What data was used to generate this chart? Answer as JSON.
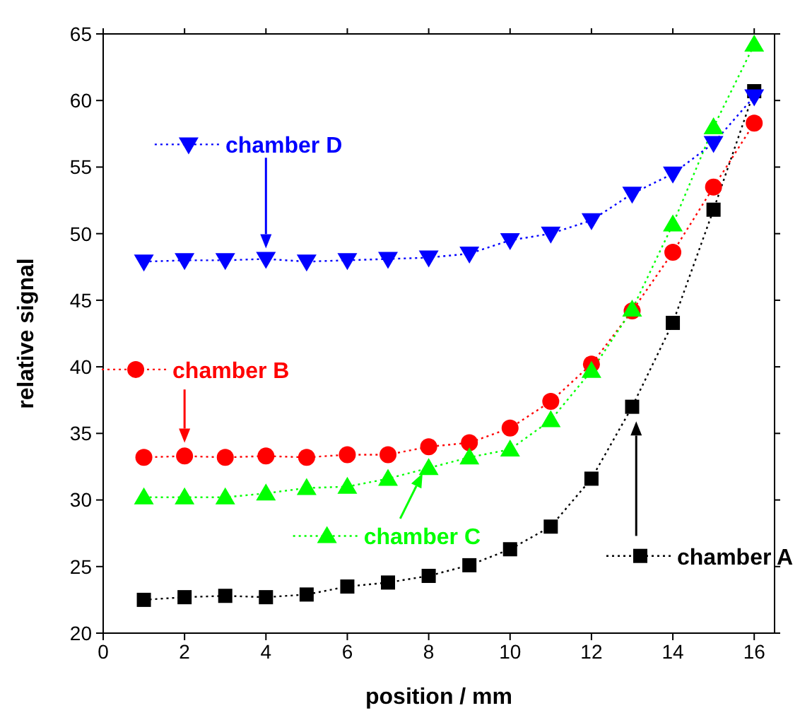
{
  "chart_data": {
    "type": "line",
    "xlabel": "position / mm",
    "ylabel": "relative signal",
    "x": [
      1,
      2,
      3,
      4,
      5,
      6,
      7,
      8,
      9,
      10,
      11,
      12,
      13,
      14,
      15,
      16
    ],
    "series": [
      {
        "name": "chamber A",
        "color": "#000000",
        "marker": "square",
        "values": [
          22.5,
          22.7,
          22.8,
          22.7,
          22.9,
          23.5,
          23.8,
          24.3,
          25.1,
          26.3,
          28.0,
          31.6,
          37.0,
          43.3,
          51.8,
          60.7
        ]
      },
      {
        "name": "chamber B",
        "color": "#ff0000",
        "marker": "circle",
        "values": [
          33.2,
          33.3,
          33.2,
          33.3,
          33.2,
          33.4,
          33.4,
          34.0,
          34.3,
          35.4,
          37.4,
          40.2,
          44.2,
          48.6,
          53.5,
          58.3
        ]
      },
      {
        "name": "chamber C",
        "color": "#00ff00",
        "marker": "triangle",
        "values": [
          30.2,
          30.2,
          30.2,
          30.5,
          30.9,
          31.0,
          31.6,
          32.4,
          33.2,
          33.8,
          36.0,
          39.7,
          44.3,
          50.7,
          58.0,
          64.2
        ]
      },
      {
        "name": "chamber D",
        "color": "#0000ff",
        "marker": "triangle-down",
        "values": [
          47.9,
          48.0,
          48.0,
          48.1,
          47.9,
          48.0,
          48.1,
          48.2,
          48.5,
          49.5,
          50.0,
          51.0,
          53.0,
          54.5,
          56.8,
          60.3
        ]
      }
    ],
    "line_style": "dotted",
    "xlim": [
      0,
      16.5
    ],
    "xticks": [
      0,
      2,
      4,
      6,
      8,
      10,
      12,
      14,
      16
    ],
    "ylim": [
      20,
      65
    ],
    "yticks": [
      20,
      25,
      30,
      35,
      40,
      45,
      50,
      55,
      60,
      65
    ],
    "grid": false,
    "legend": "bottom right"
  }
}
